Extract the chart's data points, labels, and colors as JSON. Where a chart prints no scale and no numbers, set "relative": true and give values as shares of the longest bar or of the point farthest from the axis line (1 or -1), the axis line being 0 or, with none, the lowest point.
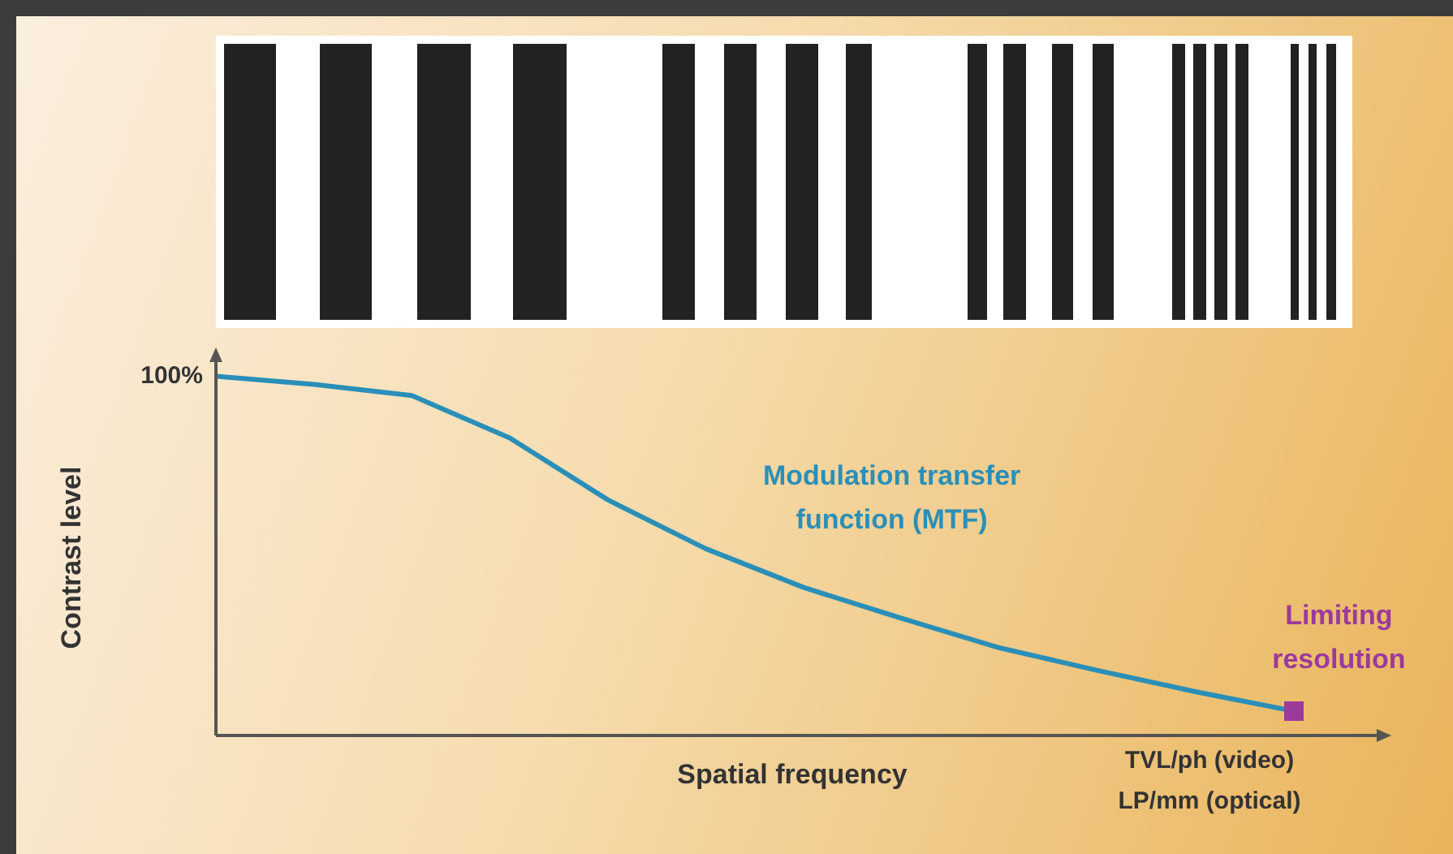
{
  "chart_data": {
    "type": "line",
    "relative": true,
    "xlabel": "Spatial frequency",
    "ylabel": "Contrast level",
    "annotations": [
      "100%",
      "TVL/ph (video)",
      "LP/mm (optical)",
      "Limiting resolution"
    ],
    "categories": [
      null,
      null,
      null,
      null,
      null,
      null,
      null,
      null,
      null,
      null,
      null,
      null
    ],
    "series": [
      {
        "name": "Modulation transfer function (MTF)",
        "color": "#2a8fb8",
        "values": [
          1,
          0.977,
          0.946,
          0.828,
          0.656,
          0.52,
          0.412,
          0.326,
          0.244,
          0.181,
          0.122,
          0.068
        ]
      }
    ],
    "marker": "none",
    "legend": false
  }
}
